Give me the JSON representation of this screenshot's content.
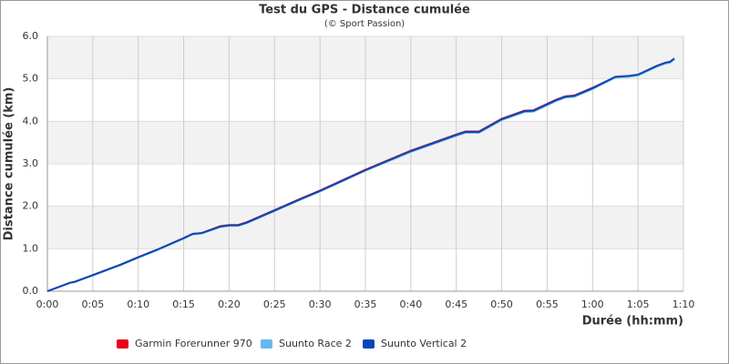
{
  "chart_data": {
    "type": "line",
    "title": "Test du GPS - Distance cumulée",
    "subtitle": "(© Sport Passion)",
    "x_label": "Durée (hh:mm)",
    "y_label": "Distance cumulée (km)",
    "x": [
      0,
      1,
      2.5,
      3,
      5,
      8,
      10,
      12,
      15,
      16,
      17,
      19,
      20,
      21,
      22,
      25,
      28,
      30,
      35,
      40,
      45,
      46,
      47.5,
      50,
      52.5,
      53.5,
      55,
      56,
      57,
      58,
      60,
      62.5,
      64,
      65,
      67,
      68,
      68.5,
      69
    ],
    "series": [
      {
        "name": "Garmin Forerunner 970",
        "color": "#e8001c",
        "values": [
          0,
          0.08,
          0.2,
          0.22,
          0.38,
          0.62,
          0.8,
          0.97,
          1.25,
          1.35,
          1.37,
          1.53,
          1.56,
          1.56,
          1.63,
          1.91,
          2.19,
          2.37,
          2.86,
          3.31,
          3.69,
          3.76,
          3.76,
          4.06,
          4.25,
          4.26,
          4.41,
          4.51,
          4.59,
          4.61,
          4.79,
          5.04,
          5.06,
          5.09,
          5.3,
          5.38,
          5.4,
          5.48
        ]
      },
      {
        "name": "Suunto Race 2",
        "color": "#66b8ea",
        "values": [
          0,
          0.08,
          0.2,
          0.22,
          0.37,
          0.61,
          0.79,
          0.96,
          1.24,
          1.34,
          1.36,
          1.51,
          1.54,
          1.54,
          1.61,
          1.89,
          2.17,
          2.35,
          2.84,
          3.28,
          3.66,
          3.73,
          3.73,
          4.03,
          4.22,
          4.23,
          4.38,
          4.48,
          4.56,
          4.58,
          4.76,
          5.03,
          5.05,
          5.08,
          5.28,
          5.36,
          5.38,
          5.46
        ]
      },
      {
        "name": "Suunto Vertical 2",
        "color": "#0a47b5",
        "values": [
          0,
          0.08,
          0.2,
          0.22,
          0.38,
          0.62,
          0.8,
          0.97,
          1.25,
          1.35,
          1.37,
          1.52,
          1.55,
          1.55,
          1.62,
          1.9,
          2.18,
          2.36,
          2.85,
          3.3,
          3.68,
          3.75,
          3.75,
          4.05,
          4.24,
          4.25,
          4.4,
          4.5,
          4.58,
          4.6,
          4.78,
          5.05,
          5.07,
          5.1,
          5.3,
          5.38,
          5.4,
          5.48
        ]
      }
    ],
    "xlim": [
      0,
      70
    ],
    "xticks": [
      {
        "value": 0,
        "label": "0:00"
      },
      {
        "value": 5,
        "label": "0:05"
      },
      {
        "value": 10,
        "label": "0:10"
      },
      {
        "value": 15,
        "label": "0:15"
      },
      {
        "value": 20,
        "label": "0:20"
      },
      {
        "value": 25,
        "label": "0:25"
      },
      {
        "value": 30,
        "label": "0:30"
      },
      {
        "value": 35,
        "label": "0:35"
      },
      {
        "value": 40,
        "label": "0:40"
      },
      {
        "value": 45,
        "label": "0:45"
      },
      {
        "value": 50,
        "label": "0:50"
      },
      {
        "value": 55,
        "label": "0:55"
      },
      {
        "value": 60,
        "label": "1:00"
      },
      {
        "value": 65,
        "label": "1:05"
      },
      {
        "value": 70,
        "label": "1:10"
      }
    ],
    "ylim": [
      0,
      6
    ],
    "yticks": [
      {
        "value": 0,
        "label": "0.0"
      },
      {
        "value": 1,
        "label": "1.0"
      },
      {
        "value": 2,
        "label": "2.0"
      },
      {
        "value": 3,
        "label": "3.0"
      },
      {
        "value": 4,
        "label": "4.0"
      },
      {
        "value": 5,
        "label": "5.0"
      },
      {
        "value": 6,
        "label": "6.0"
      }
    ],
    "grid": true
  }
}
